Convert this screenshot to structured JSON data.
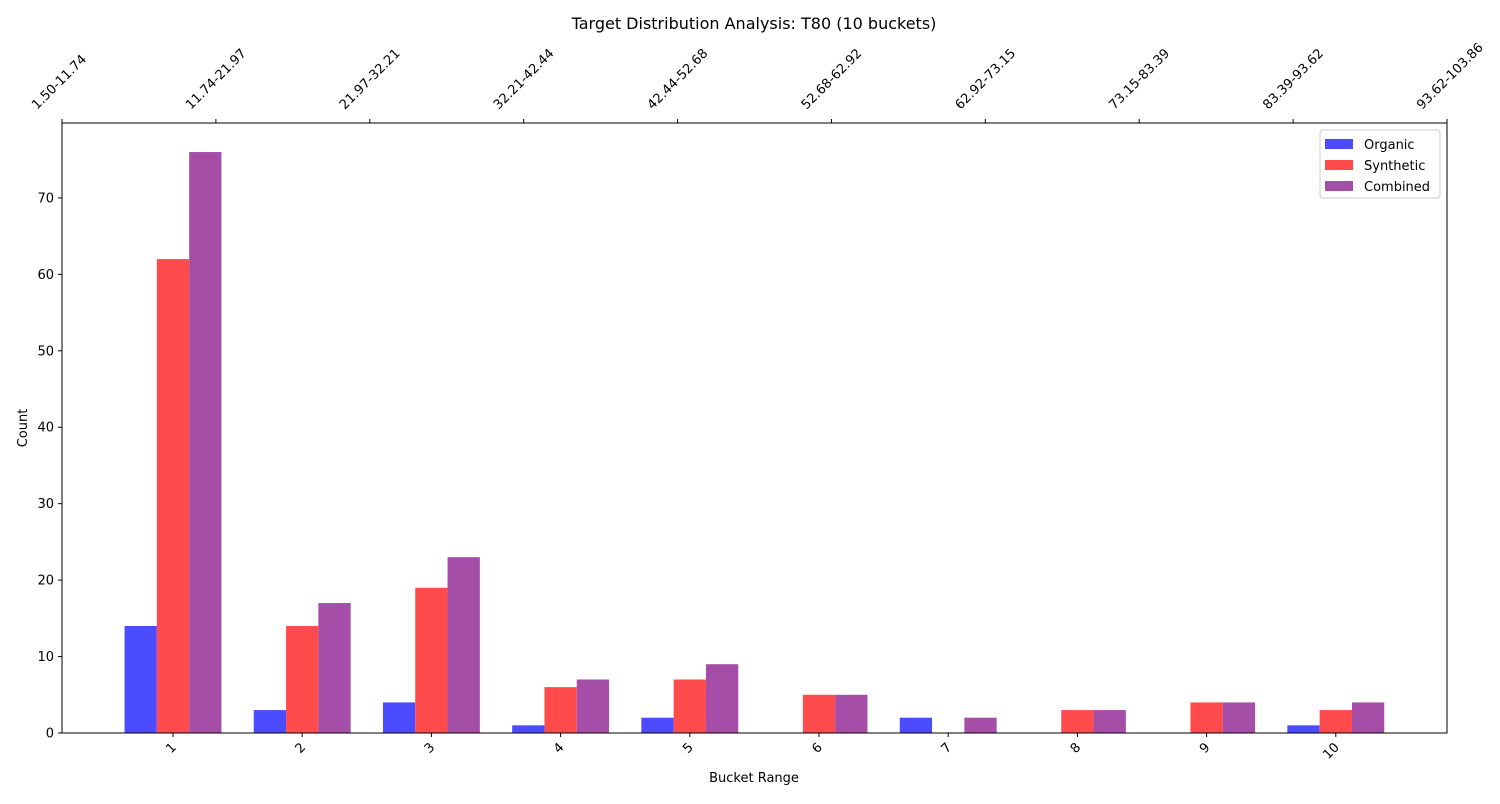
{
  "chart_data": {
    "type": "bar",
    "title": "Target Distribution Analysis: T80 (10 buckets)",
    "xlabel": "Bucket Range",
    "ylabel": "Count",
    "categories": [
      "1",
      "2",
      "3",
      "4",
      "5",
      "6",
      "7",
      "8",
      "9",
      "10"
    ],
    "top_tick_labels": [
      "1.50-11.74",
      "11.74-21.97",
      "21.97-32.21",
      "32.21-42.44",
      "42.44-52.68",
      "52.68-62.92",
      "62.92-73.15",
      "73.15-83.39",
      "83.39-93.62",
      "93.62-103.86"
    ],
    "y_ticks": [
      0,
      10,
      20,
      30,
      40,
      50,
      60,
      70
    ],
    "ylim": [
      0,
      79.8
    ],
    "grid": false,
    "legend_position": "top-right",
    "series": [
      {
        "name": "Organic",
        "color": "#4b4bff",
        "values": [
          14,
          3,
          4,
          1,
          2,
          0,
          2,
          0,
          0,
          1
        ]
      },
      {
        "name": "Synthetic",
        "color": "#ff4b4b",
        "values": [
          62,
          14,
          19,
          6,
          7,
          5,
          0,
          3,
          4,
          3
        ]
      },
      {
        "name": "Combined",
        "color": "#a44ea8",
        "values": [
          76,
          17,
          23,
          7,
          9,
          5,
          2,
          3,
          4,
          4
        ]
      }
    ]
  }
}
